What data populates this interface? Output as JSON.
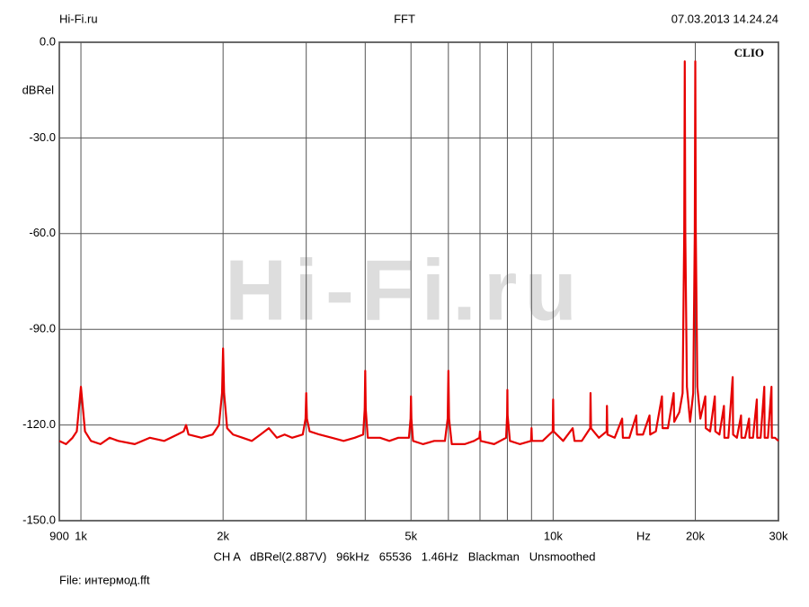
{
  "chart_data": {
    "type": "line",
    "header_left": "Hi-Fi.ru",
    "title": "FFT",
    "header_right": "07.03.2013 14.24.24",
    "brand": "CLIO",
    "watermark": "Hi-Fi.ru",
    "y_label": "dBRel",
    "x_label": "Hz",
    "footer": "CH A   dBRel(2.887V)   96kHz   65536   1.46Hz   Blackman   Unsmoothed",
    "file": "File: интермод.fft",
    "xscale": "log",
    "grid": true,
    "color": "#e60000",
    "xlim": [
      900,
      30000
    ],
    "ylim": [
      -150,
      0
    ],
    "xticks": [
      900,
      {
        "value": 1000,
        "label": "1k"
      },
      {
        "value": 2000,
        "label": "2k"
      },
      {
        "value": 5000,
        "label": "5k"
      },
      {
        "value": 10000,
        "label": "10k"
      },
      {
        "value": 20000,
        "label": "20k"
      },
      {
        "value": 30000,
        "label": "30k"
      }
    ],
    "xminor": [
      3000,
      4000,
      6000,
      7000,
      8000,
      9000
    ],
    "yticks": [
      {
        "value": 0,
        "label": "0.0"
      },
      {
        "value": -30,
        "label": "-30.0"
      },
      {
        "value": -60,
        "label": "-60.0"
      },
      {
        "value": -90,
        "label": "-90.0"
      },
      {
        "value": -120,
        "label": "-120.0"
      },
      {
        "value": -150,
        "label": "-150.0"
      }
    ],
    "x": [
      900,
      930,
      960,
      980,
      990,
      1000,
      1010,
      1020,
      1050,
      1100,
      1150,
      1200,
      1300,
      1400,
      1500,
      1600,
      1650,
      1670,
      1690,
      1800,
      1900,
      1960,
      1990,
      2000,
      2010,
      2040,
      2100,
      2200,
      2300,
      2400,
      2500,
      2600,
      2700,
      2800,
      2950,
      2990,
      3000,
      3010,
      3050,
      3200,
      3400,
      3600,
      3800,
      3960,
      3990,
      4000,
      4010,
      4050,
      4300,
      4500,
      4700,
      4950,
      4990,
      5000,
      5010,
      5050,
      5300,
      5600,
      5900,
      5980,
      6000,
      6020,
      6100,
      6500,
      6800,
      6980,
      7000,
      7020,
      7500,
      7950,
      7990,
      8000,
      8010,
      8100,
      8500,
      8980,
      9000,
      9020,
      9500,
      9980,
      10000,
      10020,
      10500,
      11000,
      11100,
      11500,
      11980,
      12000,
      12030,
      12500,
      12980,
      13000,
      13030,
      13500,
      14000,
      14050,
      14500,
      15000,
      15050,
      15500,
      16000,
      16050,
      16500,
      17000,
      17050,
      17500,
      18000,
      18050,
      18500,
      18800,
      18950,
      19000,
      19050,
      19200,
      19500,
      19800,
      19950,
      20000,
      20050,
      20200,
      20500,
      21000,
      21050,
      21500,
      22000,
      22050,
      22500,
      23000,
      23050,
      23500,
      24000,
      24050,
      24500,
      25000,
      25050,
      25500,
      26000,
      26050,
      26500,
      27000,
      27050,
      27500,
      28000,
      28050,
      28500,
      29000,
      29050,
      29500,
      30000
    ],
    "values": [
      -125,
      -126,
      -124,
      -122,
      -115,
      -108,
      -115,
      -122,
      -125,
      -126,
      -124,
      -125,
      -126,
      -124,
      -125,
      -123,
      -122,
      -120,
      -123,
      -124,
      -123,
      -120,
      -110,
      -96,
      -110,
      -121,
      -123,
      -124,
      -125,
      -123,
      -121,
      -124,
      -123,
      -124,
      -123,
      -118,
      -110,
      -118,
      -122,
      -123,
      -124,
      -125,
      -124,
      -123,
      -115,
      -103,
      -115,
      -124,
      -124,
      -125,
      -124,
      -124,
      -118,
      -111,
      -118,
      -125,
      -126,
      -125,
      -125,
      -118,
      -103,
      -118,
      -126,
      -126,
      -125,
      -124,
      -122,
      -125,
      -126,
      -124,
      -117,
      -109,
      -117,
      -125,
      -126,
      -125,
      -121,
      -125,
      -125,
      -122,
      -112,
      -122,
      -125,
      -121,
      -125,
      -125,
      -121,
      -110,
      -121,
      -124,
      -122,
      -114,
      -123,
      -124,
      -118,
      -124,
      -124,
      -117,
      -123,
      -123,
      -117,
      -123,
      -122,
      -111,
      -121,
      -121,
      -110,
      -119,
      -116,
      -110,
      -60,
      -6,
      -60,
      -108,
      -119,
      -110,
      -60,
      -6,
      -60,
      -108,
      -118,
      -111,
      -121,
      -122,
      -111,
      -122,
      -123,
      -114,
      -124,
      -124,
      -105,
      -123,
      -124,
      -117,
      -124,
      -124,
      -118,
      -124,
      -124,
      -112,
      -124,
      -124,
      -108,
      -124,
      -124,
      -108,
      -124,
      -124,
      -125
    ]
  }
}
